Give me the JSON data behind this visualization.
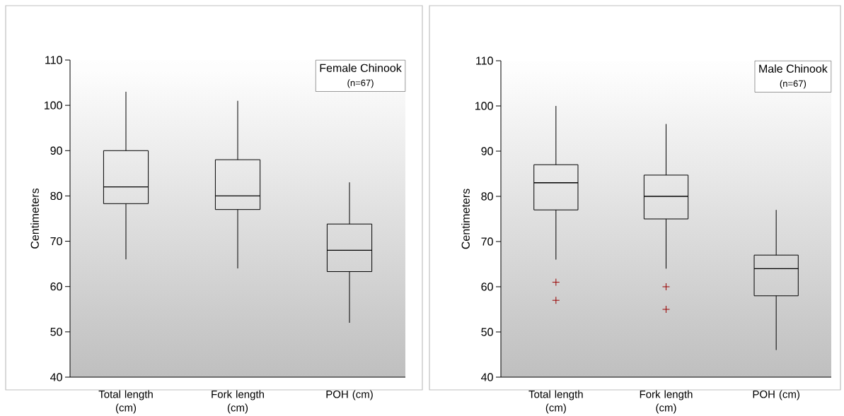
{
  "chart_data": [
    {
      "type": "box",
      "title": "Female Chinook",
      "subtitle": "(n=67)",
      "ylabel": "Centimeters",
      "categories": [
        "Total length (cm)",
        "Fork length (cm)",
        "POH (cm)"
      ],
      "ylim": [
        40,
        110
      ],
      "yticks": [
        40,
        50,
        60,
        70,
        80,
        90,
        100,
        110
      ],
      "marker": "cross",
      "boxes": [
        {
          "low": 66,
          "q1": 78.3,
          "median": 82,
          "q3": 90,
          "high": 103
        },
        {
          "low": 64,
          "q1": 77,
          "median": 80,
          "q3": 88,
          "high": 101
        },
        {
          "low": 52,
          "q1": 63.3,
          "median": 68,
          "q3": 73.8,
          "high": 83
        }
      ]
    },
    {
      "type": "box",
      "title": "Male Chinook",
      "subtitle": "(n=67)",
      "ylabel": "Centimeters",
      "categories": [
        "Total length (cm)",
        "Fork length (cm)",
        "POH (cm)"
      ],
      "ylim": [
        40,
        110
      ],
      "yticks": [
        40,
        50,
        60,
        70,
        80,
        90,
        100,
        110
      ],
      "marker": "cross",
      "boxes": [
        {
          "low": 66,
          "q1": 77,
          "median": 83,
          "q3": 87,
          "high": 100,
          "outliers": [
            61,
            57
          ]
        },
        {
          "low": 64,
          "q1": 75,
          "median": 80,
          "q3": 84.7,
          "high": 96,
          "outliers": [
            60,
            55
          ]
        },
        {
          "low": 46,
          "q1": 58,
          "median": 64,
          "q3": 67,
          "high": 77
        }
      ]
    }
  ]
}
